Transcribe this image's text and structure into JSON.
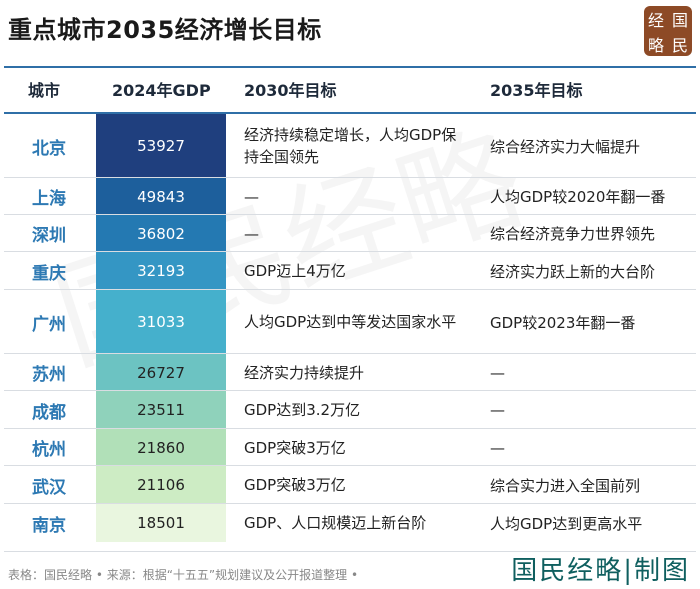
{
  "title": "重点城市2035经济增长目标",
  "logo": [
    "经",
    "国",
    "略",
    "民"
  ],
  "columns": {
    "city": "城市",
    "gdp": "2024年GDP",
    "goal2030": "2030年目标",
    "goal2035": "2035年目标"
  },
  "rows": [
    {
      "city": "北京",
      "gdp": "53927",
      "goal2030": "经济持续稳定增长，人均GDP保持全国领先",
      "goal2035": "综合经济实力大幅提升",
      "color": "#1f3f7e",
      "text_color": "#ffffff"
    },
    {
      "city": "上海",
      "gdp": "49843",
      "goal2030": "—",
      "goal2035": "人均GDP较2020年翻一番",
      "color": "#1d5f9c",
      "text_color": "#ffffff"
    },
    {
      "city": "深圳",
      "gdp": "36802",
      "goal2030": "—",
      "goal2035": "综合经济竞争力世界领先",
      "color": "#2479b2",
      "text_color": "#ffffff"
    },
    {
      "city": "重庆",
      "gdp": "32193",
      "goal2030": "GDP迈上4万亿",
      "goal2035": "经济实力跃上新的大台阶",
      "color": "#3496c4",
      "text_color": "#ffffff"
    },
    {
      "city": "广州",
      "gdp": "31033",
      "goal2030": "人均GDP达到中等发达国家水平",
      "goal2035": "GDP较2023年翻一番",
      "color": "#45b0cc",
      "text_color": "#ffffff"
    },
    {
      "city": "苏州",
      "gdp": "26727",
      "goal2030": "经济实力持续提升",
      "goal2035": "—",
      "color": "#6cc3c2",
      "text_color": "#222222"
    },
    {
      "city": "成都",
      "gdp": "23511",
      "goal2030": "GDP达到3.2万亿",
      "goal2035": "—",
      "color": "#8fd2bb",
      "text_color": "#222222"
    },
    {
      "city": "杭州",
      "gdp": "21860",
      "goal2030": "GDP突破3万亿",
      "goal2035": "—",
      "color": "#b1e0b8",
      "text_color": "#222222"
    },
    {
      "city": "武汉",
      "gdp": "21106",
      "goal2030": "GDP突破3万亿",
      "goal2035": "综合实力进入全国前列",
      "color": "#cdecc4",
      "text_color": "#222222"
    },
    {
      "city": "南京",
      "gdp": "18501",
      "goal2030": "GDP、人口规模迈上新台阶",
      "goal2035": "人均GDP达到更高水平",
      "color": "#e9f6df",
      "text_color": "#222222"
    }
  ],
  "watermark": "国民经略",
  "footer": {
    "note": "表格：国民经略 • 来源：根据“十五五”规划建议及公开报道整理 •",
    "brand": "国民经略|制图"
  }
}
